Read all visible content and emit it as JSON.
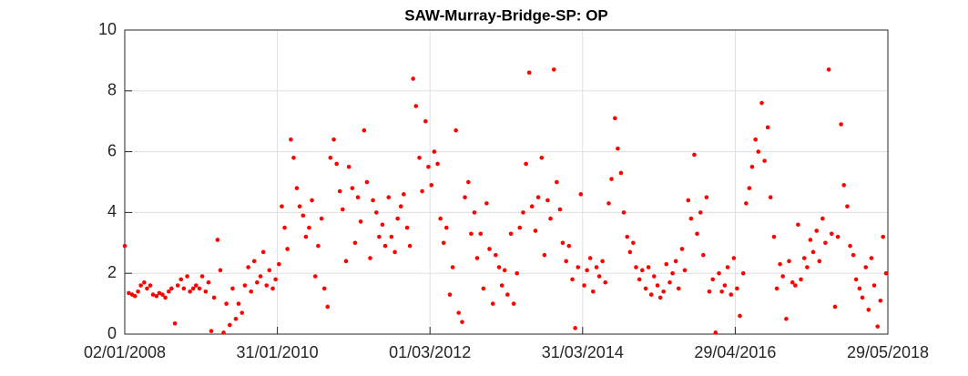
{
  "chart_data": {
    "type": "scatter",
    "title": "SAW-Murray-Bridge-SP: OP",
    "xlim": [
      "2008-01-02",
      "2018-05-29"
    ],
    "xticks": [
      {
        "value": "2008-01-02",
        "label": "02/01/2008"
      },
      {
        "value": "2010-01-31",
        "label": "31/01/2010"
      },
      {
        "value": "2012-03-01",
        "label": "01/03/2012"
      },
      {
        "value": "2014-03-31",
        "label": "31/03/2014"
      },
      {
        "value": "2016-04-29",
        "label": "29/04/2016"
      },
      {
        "value": "2018-05-29",
        "label": "29/05/2018"
      }
    ],
    "ylim": [
      0,
      10
    ],
    "yticks": [
      0,
      2,
      4,
      6,
      8,
      10
    ],
    "grid": true,
    "series": [
      {
        "color": "#ff0000",
        "x": [
          "2008-01-02",
          "2008-01-22",
          "2008-02-08",
          "2008-02-22",
          "2008-03-08",
          "2008-03-22",
          "2008-04-08",
          "2008-04-22",
          "2008-05-08",
          "2008-05-22",
          "2008-06-08",
          "2008-06-22",
          "2008-07-08",
          "2008-07-22",
          "2008-08-08",
          "2008-08-22",
          "2008-09-08",
          "2008-09-22",
          "2008-10-08",
          "2008-10-22",
          "2008-11-08",
          "2008-11-22",
          "2008-12-08",
          "2008-12-22",
          "2009-01-08",
          "2009-01-22",
          "2009-02-08",
          "2009-02-22",
          "2009-03-08",
          "2009-03-22",
          "2009-04-08",
          "2009-04-22",
          "2009-05-08",
          "2009-05-22",
          "2009-06-08",
          "2009-06-22",
          "2009-07-08",
          "2009-07-22",
          "2009-08-08",
          "2009-08-22",
          "2009-09-08",
          "2009-09-22",
          "2009-10-08",
          "2009-10-22",
          "2009-11-08",
          "2009-11-22",
          "2009-12-08",
          "2009-12-22",
          "2010-01-08",
          "2010-01-22",
          "2010-02-08",
          "2010-02-22",
          "2010-03-08",
          "2010-03-22",
          "2010-04-08",
          "2010-04-22",
          "2010-05-08",
          "2010-05-22",
          "2010-06-08",
          "2010-06-22",
          "2010-07-08",
          "2010-07-22",
          "2010-08-08",
          "2010-08-22",
          "2010-09-08",
          "2010-09-22",
          "2010-10-08",
          "2010-10-22",
          "2010-11-08",
          "2010-11-22",
          "2010-12-08",
          "2010-12-22",
          "2011-01-08",
          "2011-01-22",
          "2011-02-08",
          "2011-02-22",
          "2011-03-08",
          "2011-03-22",
          "2011-04-08",
          "2011-04-22",
          "2011-05-08",
          "2011-05-22",
          "2011-06-08",
          "2011-06-22",
          "2011-07-08",
          "2011-07-22",
          "2011-08-08",
          "2011-08-22",
          "2011-09-08",
          "2011-09-22",
          "2011-10-08",
          "2011-10-22",
          "2011-11-08",
          "2011-11-22",
          "2011-12-08",
          "2011-12-22",
          "2012-01-08",
          "2012-01-22",
          "2012-02-08",
          "2012-02-22",
          "2012-03-08",
          "2012-03-22",
          "2012-04-08",
          "2012-04-22",
          "2012-05-08",
          "2012-05-22",
          "2012-06-08",
          "2012-06-22",
          "2012-07-08",
          "2012-07-22",
          "2012-08-08",
          "2012-08-22",
          "2012-09-08",
          "2012-09-22",
          "2012-10-08",
          "2012-10-22",
          "2012-11-08",
          "2012-11-22",
          "2012-12-08",
          "2012-12-22",
          "2013-01-08",
          "2013-01-22",
          "2013-02-08",
          "2013-02-22",
          "2013-03-08",
          "2013-03-22",
          "2013-04-08",
          "2013-04-22",
          "2013-05-08",
          "2013-05-22",
          "2013-06-08",
          "2013-06-22",
          "2013-07-08",
          "2013-07-22",
          "2013-08-08",
          "2013-08-22",
          "2013-09-08",
          "2013-09-22",
          "2013-10-08",
          "2013-10-22",
          "2013-11-08",
          "2013-11-22",
          "2013-12-08",
          "2013-12-22",
          "2014-01-08",
          "2014-01-22",
          "2014-02-08",
          "2014-02-22",
          "2014-03-08",
          "2014-03-22",
          "2014-04-08",
          "2014-04-22",
          "2014-05-08",
          "2014-05-22",
          "2014-06-08",
          "2014-06-22",
          "2014-07-08",
          "2014-07-22",
          "2014-08-08",
          "2014-08-22",
          "2014-09-08",
          "2014-09-22",
          "2014-10-08",
          "2014-10-22",
          "2014-11-08",
          "2014-11-22",
          "2014-12-08",
          "2014-12-22",
          "2015-01-08",
          "2015-01-22",
          "2015-02-08",
          "2015-02-22",
          "2015-03-08",
          "2015-03-22",
          "2015-04-08",
          "2015-04-22",
          "2015-05-08",
          "2015-05-22",
          "2015-06-08",
          "2015-06-22",
          "2015-07-08",
          "2015-07-22",
          "2015-08-08",
          "2015-08-22",
          "2015-09-08",
          "2015-09-22",
          "2015-10-08",
          "2015-10-22",
          "2015-11-08",
          "2015-11-22",
          "2015-12-08",
          "2015-12-22",
          "2016-01-08",
          "2016-01-22",
          "2016-02-08",
          "2016-02-22",
          "2016-03-08",
          "2016-03-22",
          "2016-04-08",
          "2016-04-22",
          "2016-05-08",
          "2016-05-22",
          "2016-06-08",
          "2016-06-22",
          "2016-07-08",
          "2016-07-22",
          "2016-08-08",
          "2016-08-22",
          "2016-09-08",
          "2016-09-22",
          "2016-10-08",
          "2016-10-22",
          "2016-11-08",
          "2016-11-22",
          "2016-12-08",
          "2016-12-22",
          "2017-01-08",
          "2017-01-22",
          "2017-02-08",
          "2017-02-22",
          "2017-03-08",
          "2017-03-22",
          "2017-04-08",
          "2017-04-22",
          "2017-05-08",
          "2017-05-22",
          "2017-06-08",
          "2017-06-22",
          "2017-07-08",
          "2017-07-22",
          "2017-08-08",
          "2017-08-22",
          "2017-09-08",
          "2017-09-22",
          "2017-10-08",
          "2017-10-22",
          "2017-11-08",
          "2017-11-22",
          "2017-12-08",
          "2017-12-22",
          "2018-01-08",
          "2018-01-22",
          "2018-02-08",
          "2018-02-22",
          "2018-03-08",
          "2018-03-22",
          "2018-04-08",
          "2018-04-22",
          "2018-05-05",
          "2018-05-20"
        ],
        "values": [
          2.9,
          1.35,
          1.3,
          1.25,
          1.4,
          1.6,
          1.7,
          1.5,
          1.6,
          1.3,
          1.25,
          1.35,
          1.3,
          1.2,
          1.4,
          1.5,
          0.35,
          1.6,
          1.8,
          1.5,
          1.9,
          1.4,
          1.5,
          1.6,
          1.5,
          1.9,
          1.4,
          1.7,
          0.1,
          1.2,
          3.1,
          2.1,
          0.05,
          1.0,
          0.3,
          1.5,
          0.5,
          1.0,
          0.7,
          1.6,
          2.2,
          1.4,
          2.4,
          1.7,
          1.9,
          2.7,
          1.6,
          2.1,
          1.5,
          1.8,
          2.3,
          4.2,
          3.5,
          2.8,
          6.4,
          5.8,
          4.8,
          4.2,
          3.9,
          3.2,
          3.5,
          4.4,
          1.9,
          2.9,
          3.8,
          1.5,
          0.9,
          5.8,
          6.4,
          5.6,
          4.7,
          4.1,
          2.4,
          5.5,
          4.8,
          3.0,
          4.5,
          3.7,
          6.7,
          5.0,
          2.5,
          4.4,
          4.0,
          3.2,
          3.6,
          2.9,
          4.5,
          3.2,
          2.7,
          3.8,
          4.2,
          4.6,
          3.5,
          2.9,
          8.4,
          7.5,
          5.8,
          4.7,
          7.0,
          5.5,
          4.9,
          6.0,
          5.6,
          3.8,
          3.0,
          3.5,
          1.3,
          2.2,
          6.7,
          0.7,
          0.4,
          4.5,
          5.0,
          3.3,
          4.0,
          2.5,
          3.3,
          1.5,
          4.3,
          2.8,
          1.0,
          2.6,
          2.2,
          1.6,
          2.1,
          1.3,
          3.3,
          1.0,
          2.0,
          3.5,
          4.0,
          5.6,
          8.6,
          4.2,
          3.4,
          4.5,
          5.8,
          2.6,
          4.4,
          3.8,
          8.7,
          5.0,
          4.1,
          3.0,
          2.4,
          2.9,
          1.8,
          0.2,
          2.2,
          4.6,
          1.6,
          2.1,
          2.5,
          1.4,
          2.2,
          1.9,
          2.4,
          1.7,
          4.3,
          5.1,
          7.1,
          6.1,
          5.3,
          4.0,
          3.2,
          2.7,
          3.0,
          2.2,
          1.8,
          2.1,
          1.5,
          2.2,
          1.3,
          1.9,
          1.6,
          1.2,
          1.4,
          2.3,
          1.7,
          2.0,
          2.4,
          1.5,
          2.8,
          2.1,
          4.4,
          3.8,
          5.9,
          3.3,
          4.0,
          2.6,
          4.5,
          1.4,
          1.8,
          0.05,
          2.0,
          1.4,
          1.6,
          2.2,
          1.3,
          2.5,
          1.5,
          0.6,
          2.0,
          4.3,
          4.8,
          5.5,
          6.4,
          6.0,
          7.6,
          5.7,
          6.8,
          4.5,
          3.2,
          1.5,
          2.3,
          1.9,
          0.5,
          2.4,
          1.7,
          1.6,
          3.6,
          1.8,
          2.5,
          2.2,
          3.1,
          2.7,
          3.4,
          2.4,
          3.8,
          3.0,
          8.7,
          3.3,
          0.9,
          3.2,
          6.9,
          4.9,
          4.2,
          2.9,
          2.6,
          1.8,
          1.5,
          1.2,
          2.2,
          0.8,
          2.5,
          1.6,
          0.25,
          1.1,
          3.2,
          2.0
        ]
      }
    ]
  }
}
